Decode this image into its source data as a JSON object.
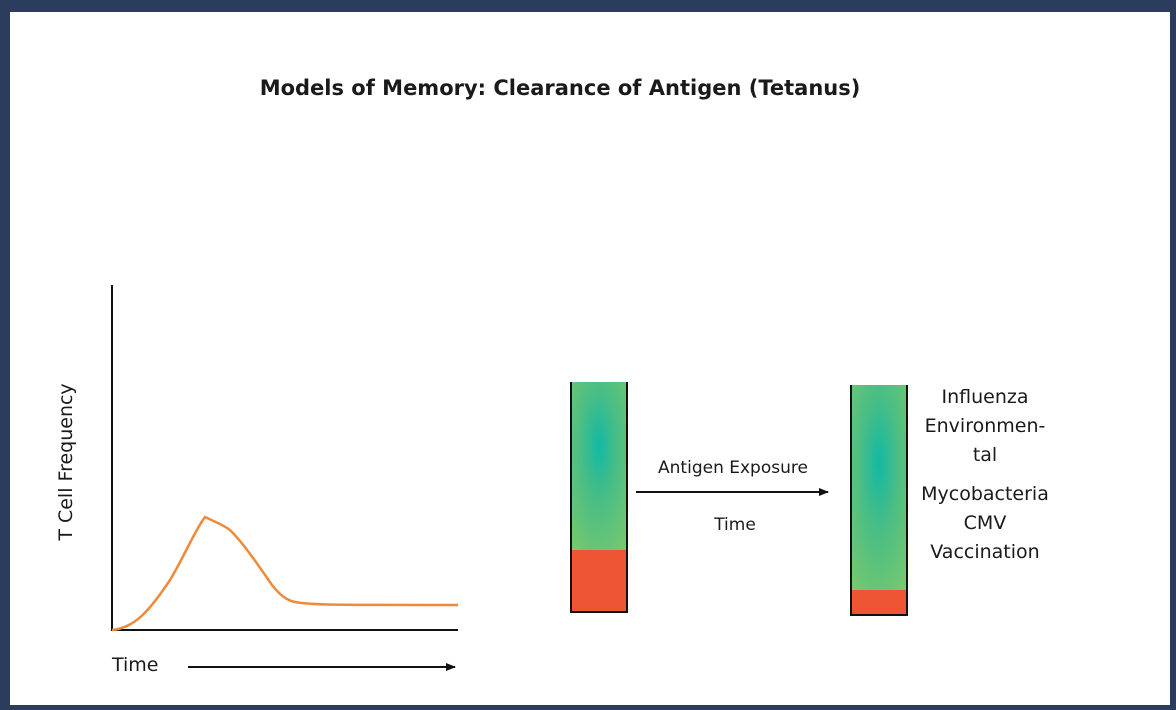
{
  "title": "Models of Memory:  Clearance of Antigen (Tetanus)",
  "graph": {
    "y_axis_label": "T Cell Frequency",
    "x_axis_label": "Time"
  },
  "transition": {
    "above": "Antigen Exposure",
    "below": "Time"
  },
  "antigens": [
    "Influenza",
    "Environmen-",
    "tal",
    "Mycobacteria",
    "CMV",
    "Vaccination"
  ]
}
